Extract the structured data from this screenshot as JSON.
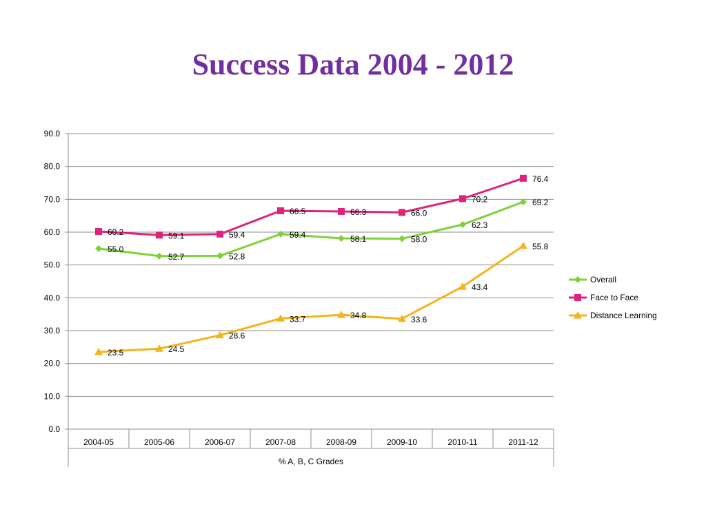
{
  "chart_data": {
    "type": "line",
    "title": "Success Data 2004 - 2012",
    "xlabel": "% A, B, C Grades",
    "ylabel": "",
    "ylim": [
      0,
      90
    ],
    "ytick_step": 10,
    "ytick_labels": [
      "0.0",
      "10.0",
      "20.0",
      "30.0",
      "40.0",
      "50.0",
      "60.0",
      "70.0",
      "80.0",
      "90.0"
    ],
    "grid": true,
    "legend_position": "right",
    "categories": [
      "2004-05",
      "2005-06",
      "2006-07",
      "2007-08",
      "2008-09",
      "2009-10",
      "2010-11",
      "2011-12"
    ],
    "series": [
      {
        "name": "Overall",
        "color": "#7ed13a",
        "marker": "diamond",
        "values": [
          55.0,
          52.7,
          52.8,
          59.4,
          58.1,
          58.0,
          62.3,
          69.2
        ],
        "labels": [
          "55.0",
          "52.7",
          "52.8",
          "59.4",
          "58.1",
          "58.0",
          "62.3",
          "69.2"
        ]
      },
      {
        "name": "Face to Face",
        "color": "#e0237a",
        "marker": "square",
        "values": [
          60.2,
          59.1,
          59.4,
          66.5,
          66.3,
          66.0,
          70.2,
          76.4
        ],
        "labels": [
          "60.2",
          "59.1",
          "59.4",
          "66.5",
          "66.3",
          "66.0",
          "70.2",
          "76.4"
        ]
      },
      {
        "name": "Distance Learning",
        "color": "#f5b31a",
        "marker": "triangle",
        "values": [
          23.5,
          24.5,
          28.6,
          33.7,
          34.8,
          33.6,
          43.4,
          55.8
        ],
        "labels": [
          "23.5",
          "24.5",
          "28.6",
          "33.7",
          "34.8",
          "33.6",
          "43.4",
          "55.8"
        ]
      }
    ]
  }
}
